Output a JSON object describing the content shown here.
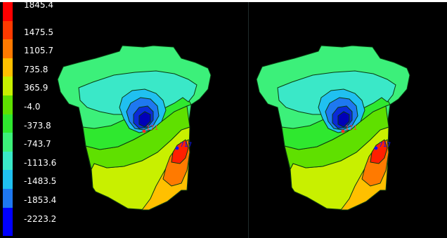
{
  "legend": {
    "labels": [
      "1845.4",
      "1475.5",
      "1105.7",
      "735.8",
      "365.9",
      "-4.0",
      "-373.8",
      "-743.7",
      "-1113.6",
      "-1483.5",
      "-1853.4",
      "-2223.2"
    ],
    "colors": [
      "#ff0000",
      "#ff3a00",
      "#ff7a00",
      "#ffc000",
      "#c8f000",
      "#5fe000",
      "#2fe82f",
      "#3cf07a",
      "#3ae8c8",
      "#20c0f0",
      "#1e78f0",
      "#0000ff"
    ]
  },
  "panels": [
    {
      "markers": {
        "a": {
          "label": "171"
        },
        "b": {
          "label": "717"
        }
      }
    },
    {
      "markers": {
        "a": {
          "label": "171"
        },
        "b": {
          "label": "717"
        }
      }
    }
  ]
}
